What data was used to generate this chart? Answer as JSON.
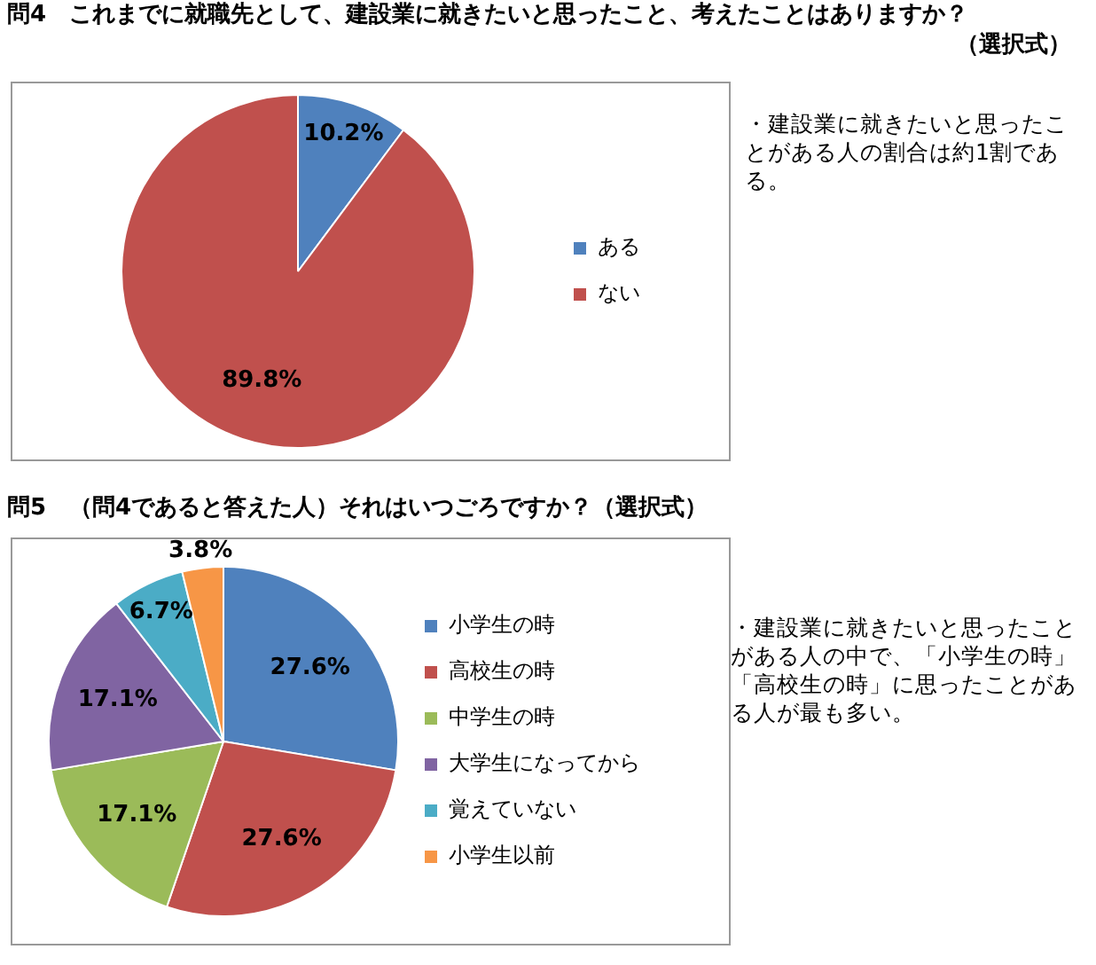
{
  "chart_data": [
    {
      "type": "pie",
      "title": "問4　これまでに就職先として、建設業に就きたいと思ったこと、考えたことはありますか？（選択式）",
      "categories": [
        "ある",
        "ない"
      ],
      "values": [
        10.2,
        89.8
      ],
      "colors": [
        "#4f81bd",
        "#c0504d"
      ],
      "value_labels": [
        "10.2%",
        "89.8%"
      ],
      "legend": "right",
      "annotations": [
        "・建設業に就きたいと思ったことがある人の割合は約1割である。"
      ]
    },
    {
      "type": "pie",
      "title": "問5　（問4であると答えた人）それはいつごろですか？（選択式）",
      "categories": [
        "小学生の時",
        "高校生の時",
        "中学生の時",
        "大学生になってから",
        "覚えていない",
        "小学生以前"
      ],
      "values": [
        27.6,
        27.6,
        17.1,
        17.1,
        6.7,
        3.8
      ],
      "colors": [
        "#4f81bd",
        "#c0504d",
        "#9bbb59",
        "#8064a2",
        "#4bacc6",
        "#f79646"
      ],
      "value_labels": [
        "27.6%",
        "27.6%",
        "17.1%",
        "17.1%",
        "6.7%",
        "3.8%"
      ],
      "legend": "right",
      "annotations": [
        "・建設業に就きたいと思ったことがある人の中で、「小学生の時」「高校生の時」に思ったことがある人が最も多い。"
      ]
    }
  ]
}
